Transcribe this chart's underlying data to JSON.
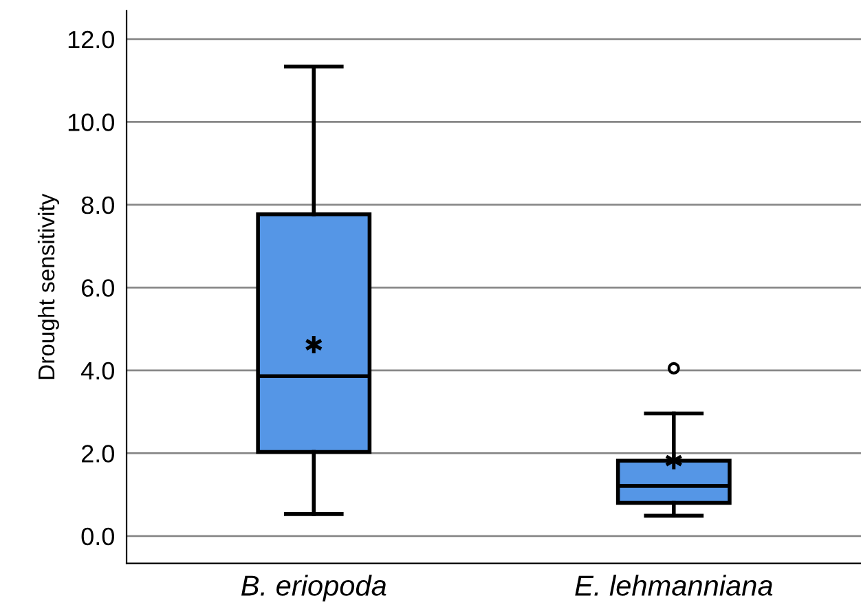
{
  "chart_data": {
    "type": "box",
    "ylabel": "Drought sensitivity",
    "categories": [
      "B. eriopoda",
      "E. lehmanniana"
    ],
    "boxes": [
      {
        "low": 0.53,
        "q1": 2.03,
        "median": 3.86,
        "q3": 7.77,
        "high": 11.34,
        "mean": 4.62
      },
      {
        "low": 0.49,
        "q1": 0.8,
        "median": 1.21,
        "q3": 1.82,
        "high": 2.96,
        "mean": 1.82,
        "outliers": [
          4.05
        ]
      }
    ],
    "color": "#5596e6",
    "ylim": [
      -0.66,
      12.68
    ],
    "yticks": [
      {
        "value": 0,
        "label": "0.0"
      },
      {
        "value": 2,
        "label": "2.0"
      },
      {
        "value": 4,
        "label": "4.0"
      },
      {
        "value": 6,
        "label": "6.0"
      },
      {
        "value": 8,
        "label": "8.0"
      },
      {
        "value": 10,
        "label": "10.0"
      },
      {
        "value": 12,
        "label": "12.0"
      }
    ],
    "grid": "y"
  }
}
